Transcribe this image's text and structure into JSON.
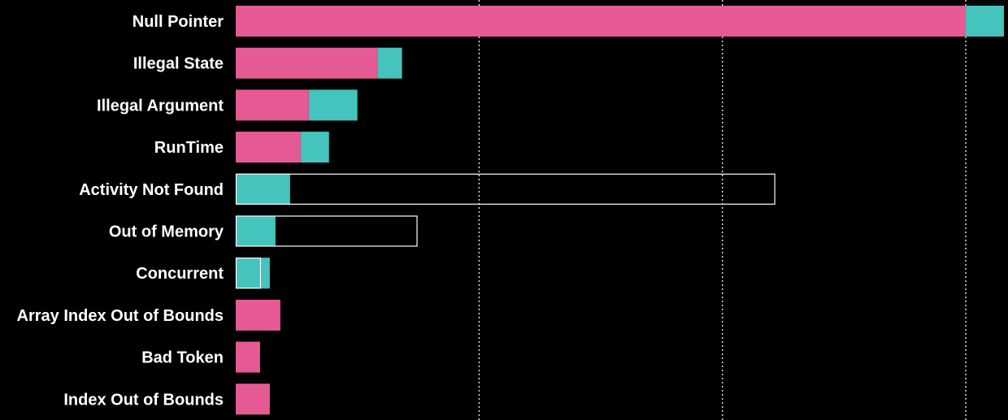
{
  "chart_data": {
    "type": "bar",
    "orientation": "horizontal",
    "stacked": true,
    "title": "",
    "xlabel": "",
    "ylabel": "",
    "xlim": [
      0,
      94
    ],
    "grid": "vertical dotted",
    "legend": "none",
    "categories": [
      "Null Pointer",
      "Illegal State",
      "Illegal Argument",
      "RunTime",
      "Activity Not Found",
      "Out of Memory",
      "Concurrent",
      "Array Index Out of Bounds",
      "Bad Token",
      "Index Out of Bounds"
    ],
    "series": [
      {
        "color": "#e55a94",
        "values": [
          90,
          17.5,
          9,
          8,
          0,
          0,
          0,
          5.5,
          3,
          4.2
        ]
      },
      {
        "color": "#45c3bd",
        "values": [
          4.7,
          3,
          6,
          3.5,
          6.7,
          4.9,
          4.2,
          0,
          0,
          0
        ]
      }
    ],
    "outlines": [
      null,
      null,
      null,
      null,
      66.5,
      22.4,
      3.1,
      null,
      null,
      null
    ],
    "outline_color": "#ffffff"
  }
}
